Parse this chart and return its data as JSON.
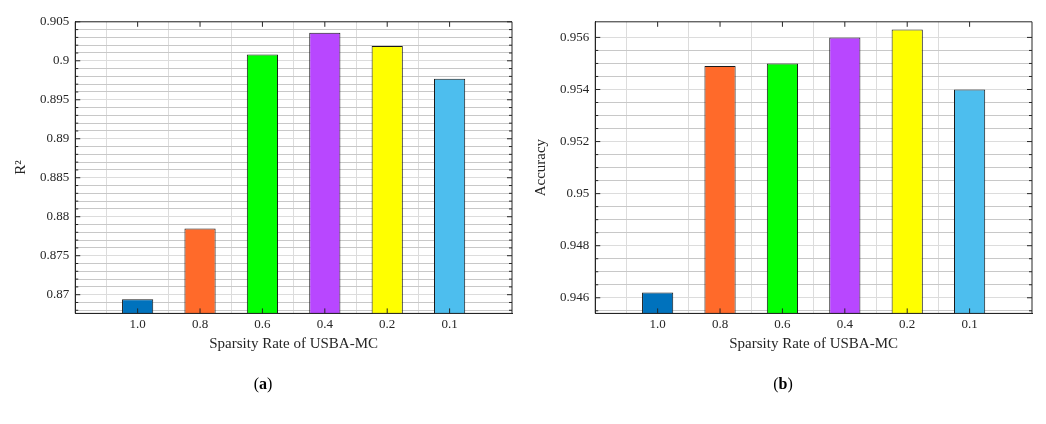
{
  "chart_data": [
    {
      "type": "bar",
      "categories": [
        "1.0",
        "0.8",
        "0.6",
        "0.4",
        "0.2",
        "0.1"
      ],
      "values": [
        0.8694,
        0.8785,
        0.9008,
        0.9036,
        0.9019,
        0.8977
      ],
      "colors": [
        "#0072bd",
        "#ff6a2a",
        "#00ff00",
        "#b847ff",
        "#ffff00",
        "#4dbeee"
      ],
      "xlabel": "Sparsity Rate of USBA-MC",
      "ylabel": "R²",
      "ylim": [
        0.8676,
        0.905
      ],
      "yticks": [
        {
          "value": 0.868,
          "label": null
        },
        {
          "value": 0.869,
          "label": null
        },
        0.87,
        {
          "value": 0.871,
          "label": null
        },
        {
          "value": 0.872,
          "label": null
        },
        {
          "value": 0.873,
          "label": null
        },
        {
          "value": 0.874,
          "label": null
        },
        0.875,
        {
          "value": 0.876,
          "label": null
        },
        {
          "value": 0.877,
          "label": null
        },
        {
          "value": 0.878,
          "label": null
        },
        {
          "value": 0.879,
          "label": null
        },
        0.88,
        {
          "value": 0.881,
          "label": null
        },
        {
          "value": 0.882,
          "label": null
        },
        {
          "value": 0.883,
          "label": null
        },
        {
          "value": 0.884,
          "label": null
        },
        0.885,
        {
          "value": 0.886,
          "label": null
        },
        {
          "value": 0.887,
          "label": null
        },
        {
          "value": 0.888,
          "label": null
        },
        {
          "value": 0.889,
          "label": null
        },
        0.89,
        {
          "value": 0.891,
          "label": null
        },
        {
          "value": 0.892,
          "label": null
        },
        {
          "value": 0.893,
          "label": null
        },
        {
          "value": 0.894,
          "label": null
        },
        0.895,
        {
          "value": 0.896,
          "label": null
        },
        {
          "value": 0.897,
          "label": null
        },
        {
          "value": 0.898,
          "label": null
        },
        {
          "value": 0.899,
          "label": null
        },
        {
          "value": 0.9,
          "label": "0.9"
        },
        {
          "value": 0.901,
          "label": null
        },
        {
          "value": 0.902,
          "label": null
        },
        {
          "value": 0.903,
          "label": null
        },
        {
          "value": 0.904,
          "label": null
        },
        0.905
      ],
      "grid": true,
      "annotations": [
        "(a)"
      ]
    },
    {
      "type": "bar",
      "categories": [
        "1.0",
        "0.8",
        "0.6",
        "0.4",
        "0.2",
        "0.1"
      ],
      "values": [
        0.9462,
        0.9549,
        0.955,
        0.956,
        0.9563,
        0.954
      ],
      "colors": [
        "#0072bd",
        "#ff6a2a",
        "#00ff00",
        "#b847ff",
        "#ffff00",
        "#4dbeee"
      ],
      "xlabel": "Sparsity Rate of USBA-MC",
      "ylabel": "Accuracy",
      "ylim": [
        0.9454,
        0.9566
      ],
      "yticks": [
        {
          "value": 0.9455,
          "label": null
        },
        0.946,
        {
          "value": 0.9465,
          "label": null
        },
        {
          "value": 0.947,
          "label": null
        },
        {
          "value": 0.9475,
          "label": null
        },
        0.948,
        {
          "value": 0.9485,
          "label": null
        },
        {
          "value": 0.949,
          "label": null
        },
        {
          "value": 0.9495,
          "label": null
        },
        {
          "value": 0.95,
          "label": "0.95"
        },
        {
          "value": 0.9505,
          "label": null
        },
        {
          "value": 0.951,
          "label": null
        },
        {
          "value": 0.9515,
          "label": null
        },
        0.952,
        {
          "value": 0.9525,
          "label": null
        },
        {
          "value": 0.953,
          "label": null
        },
        {
          "value": 0.9535,
          "label": null
        },
        0.954,
        {
          "value": 0.9545,
          "label": null
        },
        {
          "value": 0.955,
          "label": null
        },
        {
          "value": 0.9555,
          "label": null
        },
        0.956
      ],
      "grid": true,
      "annotations": [
        "(b)"
      ]
    }
  ]
}
